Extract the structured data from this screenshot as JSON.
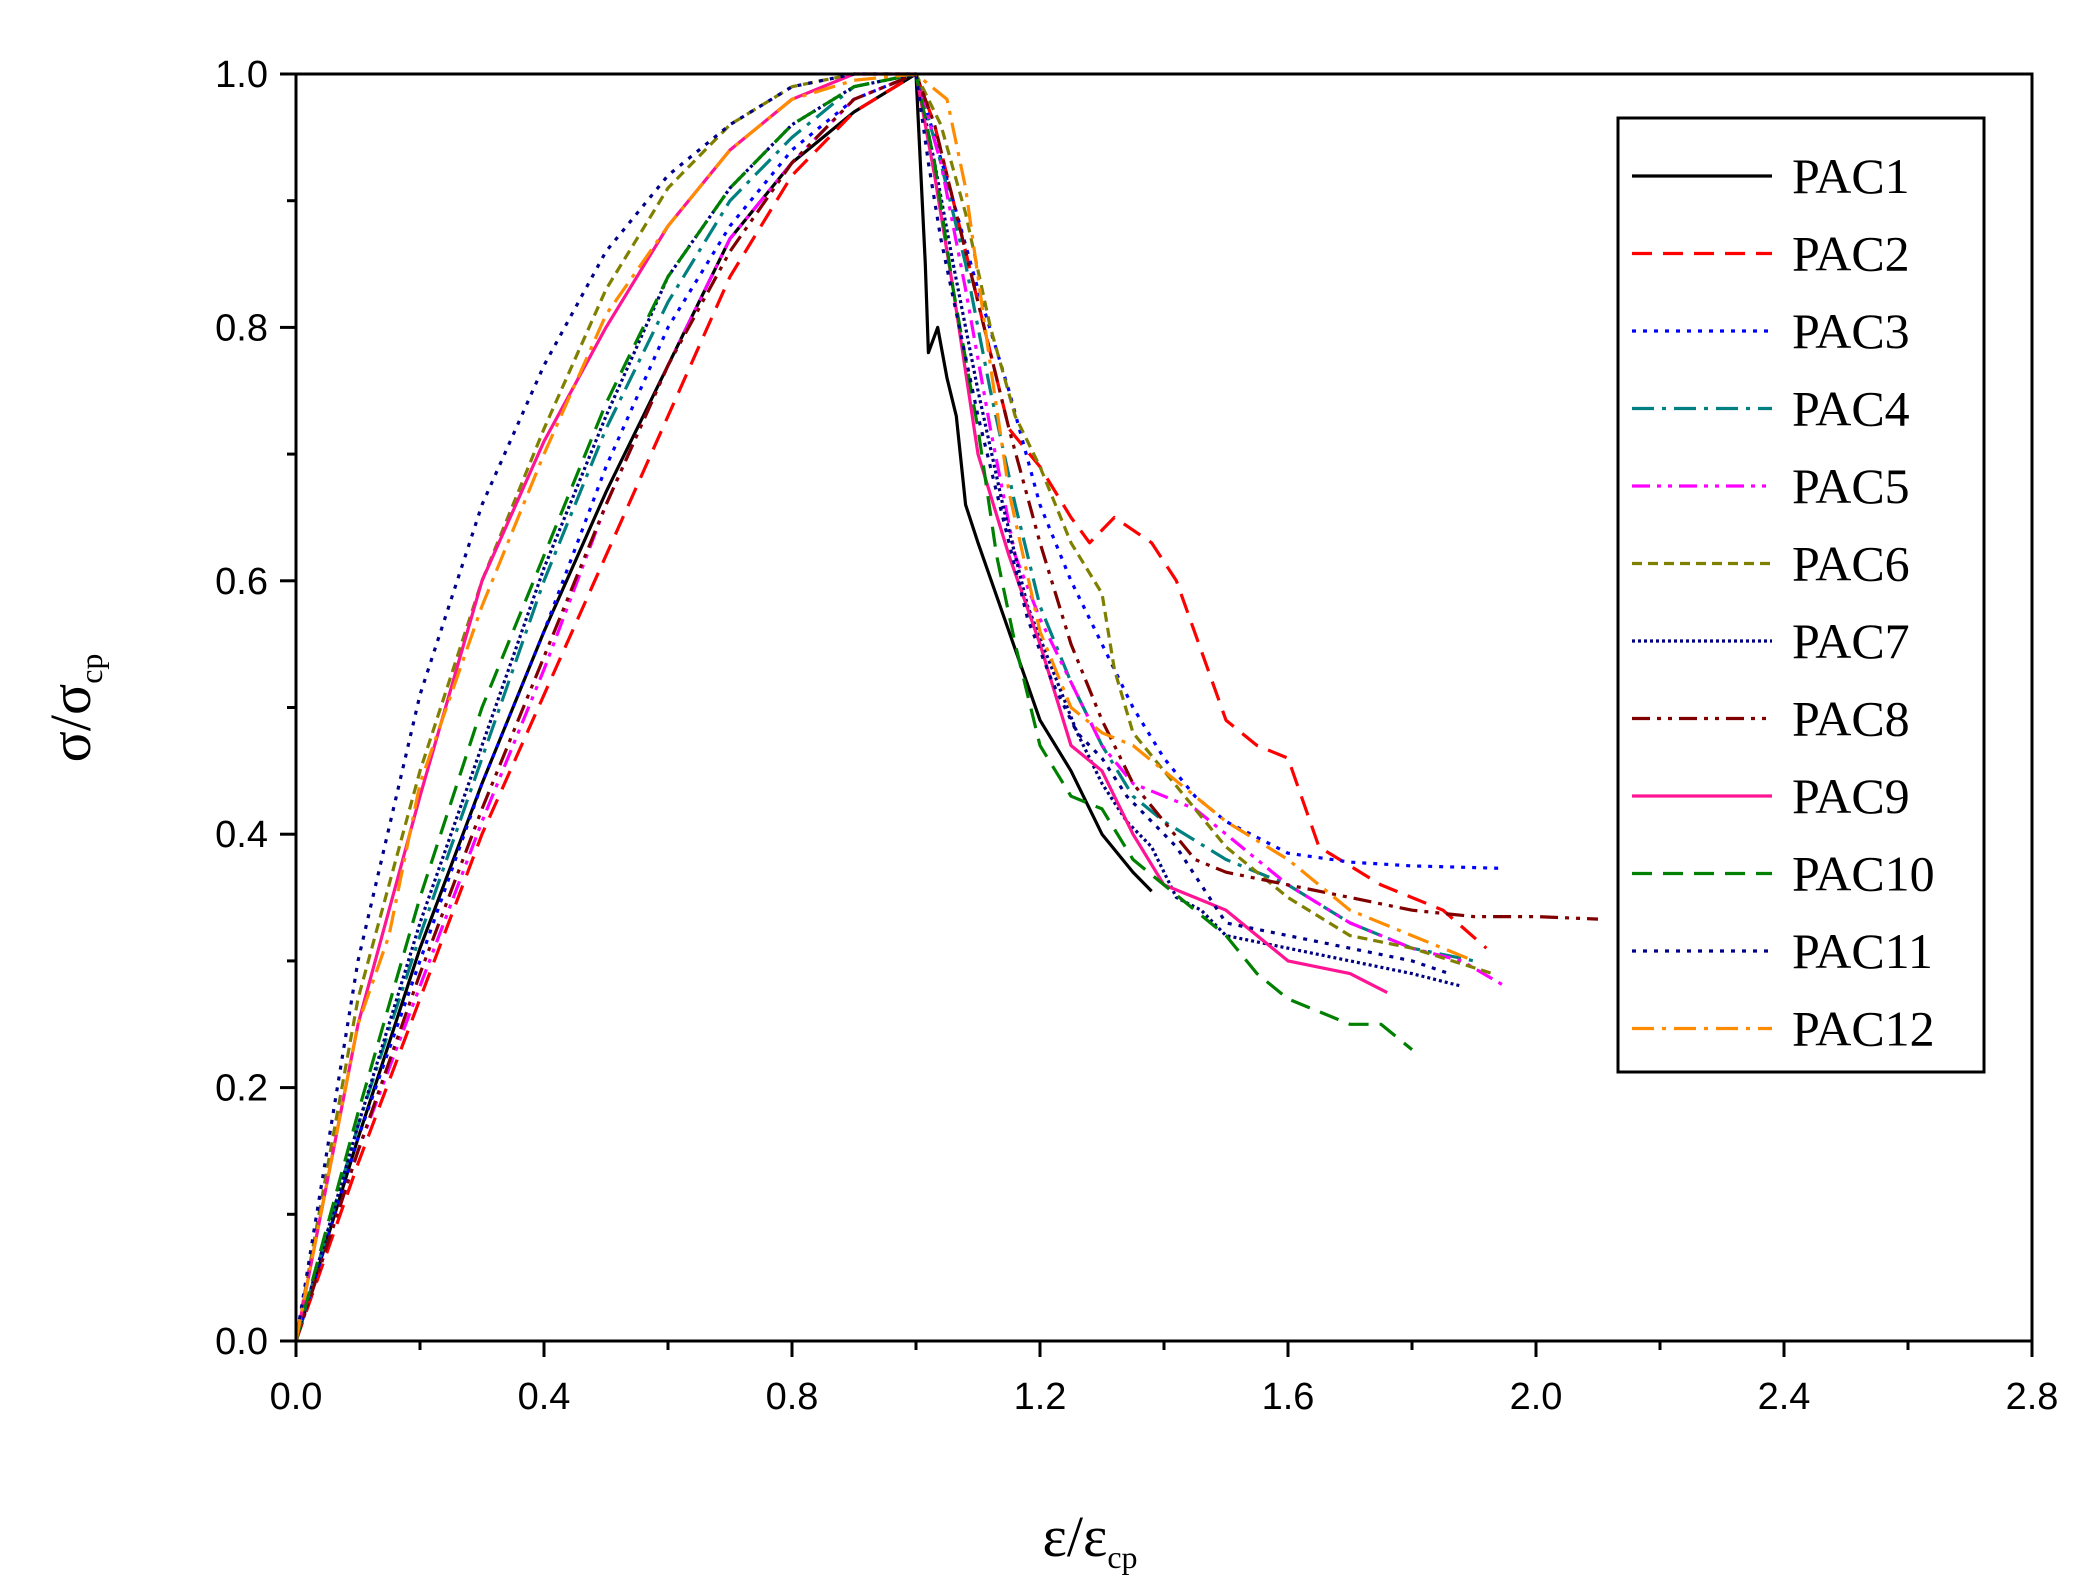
{
  "chart_data": {
    "type": "line",
    "title": "",
    "xlabel": {
      "main": "ε/ε",
      "sub": "cp"
    },
    "ylabel": {
      "main": "σ/σ",
      "sub": "cp"
    },
    "xlim": [
      0,
      2.8
    ],
    "ylim": [
      0,
      1.0
    ],
    "xticks": [
      "0.0",
      "0.4",
      "0.8",
      "1.2",
      "1.6",
      "2.0",
      "2.4",
      "2.8"
    ],
    "yticks": [
      "0.0",
      "0.2",
      "0.4",
      "0.6",
      "0.8",
      "1.0"
    ],
    "legend_position": "top-right",
    "series": [
      {
        "name": "PAC1",
        "color": "#000000",
        "dash": "solid",
        "x": [
          0,
          0.1,
          0.2,
          0.3,
          0.4,
          0.5,
          0.6,
          0.7,
          0.8,
          0.9,
          1.0,
          1.01,
          1.015,
          1.02,
          1.035,
          1.05,
          1.065,
          1.08,
          1.1,
          1.15,
          1.2,
          1.25,
          1.3,
          1.35,
          1.38
        ],
        "y": [
          0,
          0.16,
          0.31,
          0.44,
          0.56,
          0.67,
          0.77,
          0.87,
          0.93,
          0.97,
          1.0,
          0.9,
          0.85,
          0.78,
          0.8,
          0.76,
          0.73,
          0.66,
          0.63,
          0.56,
          0.49,
          0.45,
          0.4,
          0.37,
          0.355
        ]
      },
      {
        "name": "PAC2",
        "color": "#ff0000",
        "dash": "dashed",
        "x": [
          0,
          0.1,
          0.2,
          0.3,
          0.4,
          0.5,
          0.6,
          0.7,
          0.8,
          0.9,
          1.0,
          1.03,
          1.07,
          1.1,
          1.15,
          1.2,
          1.25,
          1.28,
          1.32,
          1.38,
          1.42,
          1.5,
          1.55,
          1.6,
          1.65,
          1.75,
          1.85,
          1.92
        ],
        "y": [
          0,
          0.14,
          0.27,
          0.4,
          0.51,
          0.62,
          0.73,
          0.84,
          0.92,
          0.97,
          1.0,
          0.96,
          0.88,
          0.82,
          0.72,
          0.69,
          0.65,
          0.63,
          0.65,
          0.63,
          0.6,
          0.49,
          0.47,
          0.46,
          0.39,
          0.36,
          0.34,
          0.31
        ]
      },
      {
        "name": "PAC3",
        "color": "#0000ff",
        "dash": "dotted",
        "x": [
          0,
          0.1,
          0.2,
          0.3,
          0.4,
          0.5,
          0.6,
          0.7,
          0.8,
          0.9,
          1.0,
          1.03,
          1.06,
          1.1,
          1.15,
          1.2,
          1.25,
          1.3,
          1.35,
          1.4,
          1.45,
          1.5,
          1.6,
          1.7,
          1.8,
          1.95
        ],
        "y": [
          0,
          0.16,
          0.3,
          0.44,
          0.56,
          0.69,
          0.8,
          0.88,
          0.94,
          0.98,
          1.0,
          0.95,
          0.9,
          0.83,
          0.75,
          0.66,
          0.6,
          0.55,
          0.5,
          0.46,
          0.43,
          0.41,
          0.385,
          0.378,
          0.375,
          0.373
        ]
      },
      {
        "name": "PAC4",
        "color": "#008080",
        "dash": "dashdot",
        "x": [
          0,
          0.1,
          0.2,
          0.3,
          0.4,
          0.5,
          0.6,
          0.7,
          0.8,
          0.9,
          1.0,
          1.04,
          1.08,
          1.12,
          1.16,
          1.2,
          1.25,
          1.3,
          1.35,
          1.4,
          1.5,
          1.6,
          1.7,
          1.8,
          1.9
        ],
        "y": [
          0,
          0.17,
          0.32,
          0.46,
          0.6,
          0.72,
          0.82,
          0.9,
          0.95,
          0.99,
          1.0,
          0.93,
          0.85,
          0.75,
          0.66,
          0.58,
          0.52,
          0.47,
          0.43,
          0.41,
          0.38,
          0.36,
          0.33,
          0.31,
          0.3
        ]
      },
      {
        "name": "PAC5",
        "color": "#ff00ff",
        "dash": "dashdotdot",
        "x": [
          0,
          0.1,
          0.2,
          0.3,
          0.4,
          0.5,
          0.6,
          0.7,
          0.8,
          0.9,
          1.0,
          1.04,
          1.08,
          1.12,
          1.16,
          1.2,
          1.25,
          1.3,
          1.35,
          1.4,
          1.45,
          1.5,
          1.6,
          1.7,
          1.8,
          1.88,
          1.95
        ],
        "y": [
          0,
          0.15,
          0.28,
          0.41,
          0.53,
          0.66,
          0.77,
          0.87,
          0.93,
          0.98,
          1.0,
          0.93,
          0.83,
          0.72,
          0.62,
          0.57,
          0.52,
          0.47,
          0.44,
          0.43,
          0.42,
          0.4,
          0.36,
          0.33,
          0.31,
          0.3,
          0.28
        ]
      },
      {
        "name": "PAC6",
        "color": "#808000",
        "dash": "shortdash",
        "x": [
          0,
          0.1,
          0.2,
          0.3,
          0.4,
          0.5,
          0.6,
          0.7,
          0.8,
          0.9,
          1.0,
          1.04,
          1.08,
          1.12,
          1.16,
          1.2,
          1.25,
          1.3,
          1.32,
          1.35,
          1.4,
          1.45,
          1.5,
          1.6,
          1.7,
          1.8,
          1.93
        ],
        "y": [
          0,
          0.27,
          0.45,
          0.6,
          0.72,
          0.83,
          0.91,
          0.96,
          0.99,
          1.0,
          1.0,
          0.96,
          0.89,
          0.8,
          0.73,
          0.69,
          0.63,
          0.59,
          0.53,
          0.48,
          0.45,
          0.42,
          0.39,
          0.35,
          0.32,
          0.31,
          0.29
        ]
      },
      {
        "name": "PAC7",
        "color": "#000080",
        "dash": "densedot",
        "x": [
          0,
          0.1,
          0.2,
          0.3,
          0.4,
          0.5,
          0.6,
          0.7,
          0.8,
          0.9,
          1.0,
          1.03,
          1.06,
          1.1,
          1.14,
          1.18,
          1.22,
          1.26,
          1.3,
          1.34,
          1.38,
          1.42,
          1.46,
          1.5,
          1.6,
          1.7,
          1.8,
          1.88
        ],
        "y": [
          0,
          0.17,
          0.33,
          0.47,
          0.61,
          0.73,
          0.84,
          0.91,
          0.96,
          0.99,
          1.0,
          0.93,
          0.85,
          0.75,
          0.66,
          0.58,
          0.53,
          0.48,
          0.44,
          0.41,
          0.39,
          0.35,
          0.34,
          0.32,
          0.31,
          0.3,
          0.29,
          0.28
        ]
      },
      {
        "name": "PAC8",
        "color": "#800000",
        "dash": "dashdotdot",
        "x": [
          0,
          0.1,
          0.2,
          0.3,
          0.4,
          0.5,
          0.6,
          0.7,
          0.8,
          0.9,
          1.0,
          1.03,
          1.06,
          1.1,
          1.15,
          1.2,
          1.25,
          1.3,
          1.35,
          1.4,
          1.45,
          1.5,
          1.6,
          1.7,
          1.8,
          1.9,
          2.0,
          2.1
        ],
        "y": [
          0,
          0.15,
          0.29,
          0.42,
          0.54,
          0.66,
          0.77,
          0.86,
          0.93,
          0.98,
          1.0,
          0.96,
          0.9,
          0.82,
          0.72,
          0.63,
          0.55,
          0.49,
          0.44,
          0.41,
          0.38,
          0.37,
          0.36,
          0.35,
          0.34,
          0.335,
          0.335,
          0.333
        ]
      },
      {
        "name": "PAC9",
        "color": "#ff1493",
        "dash": "solid",
        "x": [
          0,
          0.1,
          0.2,
          0.3,
          0.4,
          0.5,
          0.6,
          0.7,
          0.8,
          0.9,
          1.0,
          1.03,
          1.06,
          1.1,
          1.15,
          1.2,
          1.25,
          1.3,
          1.35,
          1.4,
          1.45,
          1.5,
          1.6,
          1.7,
          1.76
        ],
        "y": [
          0,
          0.25,
          0.43,
          0.6,
          0.71,
          0.8,
          0.88,
          0.94,
          0.98,
          1.0,
          1.0,
          0.92,
          0.83,
          0.7,
          0.62,
          0.55,
          0.47,
          0.45,
          0.4,
          0.36,
          0.35,
          0.34,
          0.3,
          0.29,
          0.275
        ]
      },
      {
        "name": "PAC10",
        "color": "#008000",
        "dash": "dashed",
        "x": [
          0,
          0.1,
          0.2,
          0.3,
          0.4,
          0.5,
          0.6,
          0.7,
          0.8,
          0.9,
          1.0,
          1.03,
          1.06,
          1.1,
          1.13,
          1.16,
          1.2,
          1.25,
          1.3,
          1.35,
          1.4,
          1.45,
          1.5,
          1.55,
          1.6,
          1.7,
          1.75,
          1.8
        ],
        "y": [
          0,
          0.18,
          0.35,
          0.5,
          0.62,
          0.74,
          0.84,
          0.91,
          0.96,
          0.99,
          1.0,
          0.93,
          0.83,
          0.72,
          0.62,
          0.55,
          0.47,
          0.43,
          0.42,
          0.38,
          0.36,
          0.34,
          0.32,
          0.29,
          0.27,
          0.25,
          0.25,
          0.23
        ]
      },
      {
        "name": "PAC11",
        "color": "#00008b",
        "dash": "dotted",
        "x": [
          0,
          0.1,
          0.2,
          0.3,
          0.4,
          0.5,
          0.6,
          0.7,
          0.8,
          0.9,
          1.0,
          1.02,
          1.04,
          1.07,
          1.1,
          1.14,
          1.18,
          1.22,
          1.26,
          1.3,
          1.34,
          1.38,
          1.42,
          1.46,
          1.5,
          1.6,
          1.7,
          1.8,
          1.86
        ],
        "y": [
          0,
          0.3,
          0.51,
          0.66,
          0.77,
          0.86,
          0.92,
          0.96,
          0.99,
          1.0,
          1.0,
          0.93,
          0.87,
          0.8,
          0.73,
          0.65,
          0.57,
          0.52,
          0.48,
          0.46,
          0.43,
          0.41,
          0.39,
          0.36,
          0.33,
          0.32,
          0.31,
          0.3,
          0.29
        ]
      },
      {
        "name": "PAC12",
        "color": "#ff8c00",
        "dash": "dashdot",
        "x": [
          0,
          0.1,
          0.15,
          0.2,
          0.3,
          0.4,
          0.5,
          0.6,
          0.7,
          0.8,
          0.9,
          1.0,
          1.05,
          1.08,
          1.1,
          1.12,
          1.15,
          1.2,
          1.25,
          1.3,
          1.35,
          1.4,
          1.45,
          1.5,
          1.6,
          1.7,
          1.8,
          1.9
        ],
        "y": [
          0,
          0.25,
          0.32,
          0.44,
          0.58,
          0.7,
          0.81,
          0.88,
          0.94,
          0.98,
          0.995,
          1.0,
          0.98,
          0.91,
          0.84,
          0.77,
          0.67,
          0.56,
          0.5,
          0.48,
          0.47,
          0.45,
          0.43,
          0.41,
          0.38,
          0.34,
          0.32,
          0.3
        ]
      }
    ]
  }
}
